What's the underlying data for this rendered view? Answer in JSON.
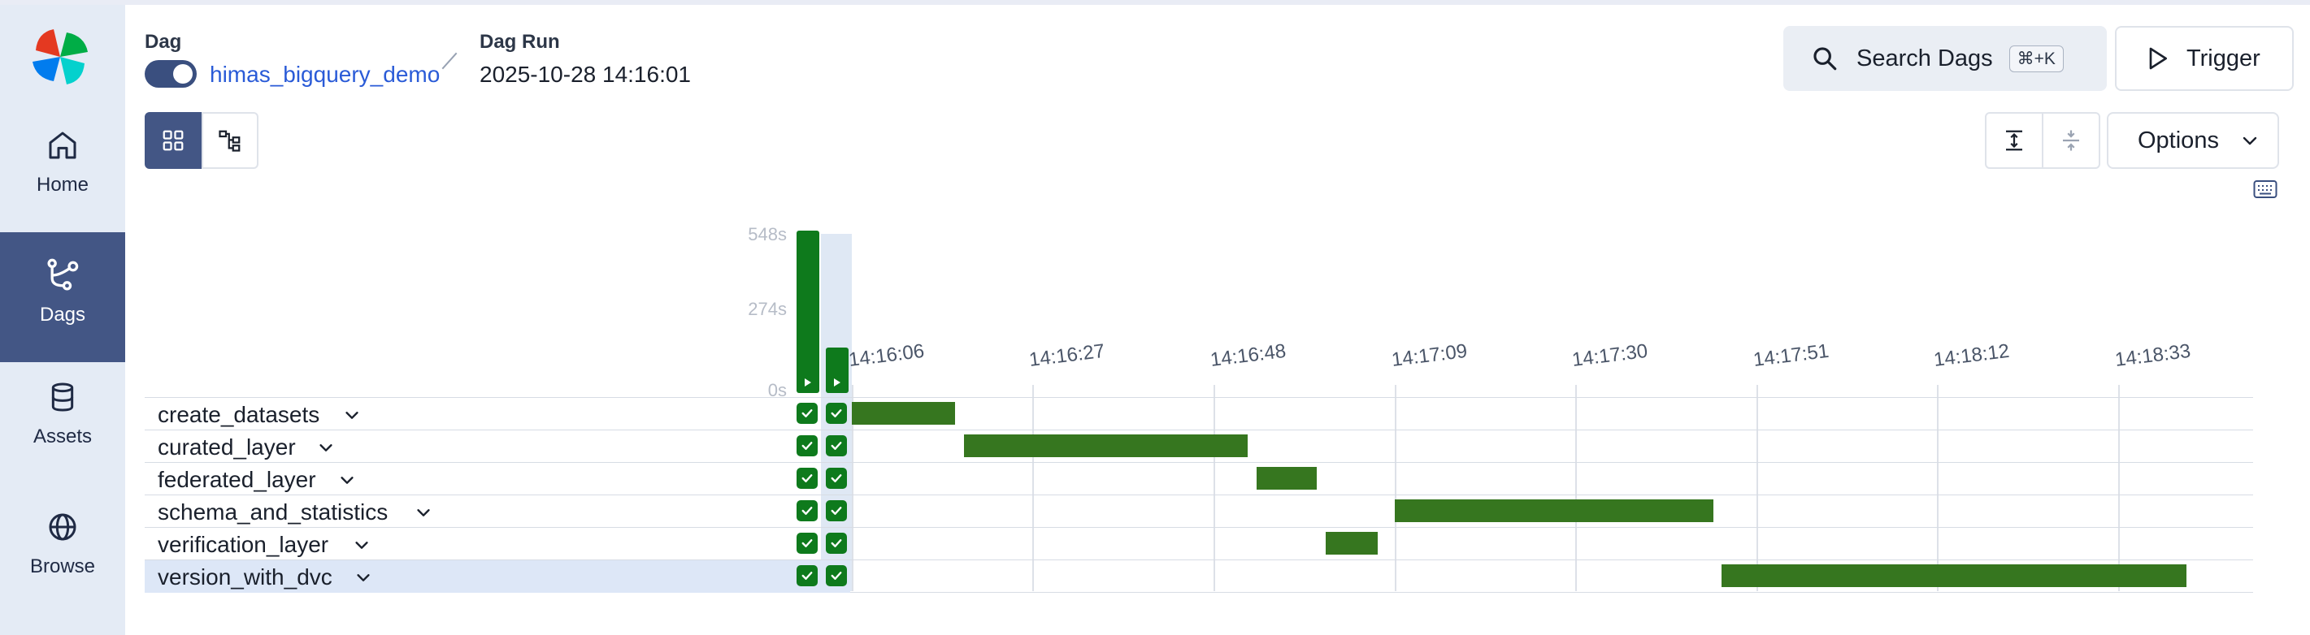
{
  "header": {
    "dag_label": "Dag",
    "dag_name": "himas_bigquery_demo",
    "dag_run_label": "Dag Run",
    "dag_run_date": "2025-10-28 14:16:01",
    "search_label": "Search Dags",
    "search_shortcut": "⌘+K",
    "trigger_label": "Trigger",
    "options_label": "Options"
  },
  "sidebar": {
    "items": [
      {
        "label": "Home",
        "icon": "home-icon"
      },
      {
        "label": "Dags",
        "icon": "dags-icon",
        "active": true
      },
      {
        "label": "Assets",
        "icon": "database-icon"
      },
      {
        "label": "Browse",
        "icon": "globe-icon"
      }
    ]
  },
  "duration_axis": {
    "labels": [
      "548s",
      "274s",
      "0s"
    ]
  },
  "time_axis": {
    "ticks": [
      "14:16:06",
      "14:16:27",
      "14:16:48",
      "14:17:09",
      "14:17:30",
      "14:17:51",
      "14:18:12",
      "14:18:33"
    ]
  },
  "tasks": [
    {
      "name": "create_datasets",
      "status": "success"
    },
    {
      "name": "curated_layer",
      "status": "success"
    },
    {
      "name": "federated_layer",
      "status": "success"
    },
    {
      "name": "schema_and_statistics",
      "status": "success"
    },
    {
      "name": "verification_layer",
      "status": "success"
    },
    {
      "name": "version_with_dvc",
      "status": "success",
      "selected": true
    }
  ],
  "colors": {
    "success": "#0e7a1c",
    "gantt_bar": "#36761f",
    "sidebar_active": "#435685",
    "link": "#2a5bd7"
  }
}
